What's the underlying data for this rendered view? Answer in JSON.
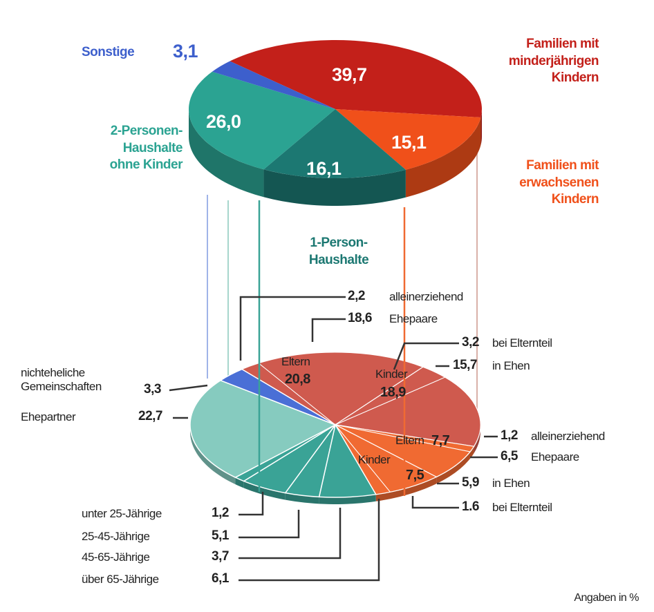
{
  "footnote": "Angaben in %",
  "chart_data": [
    {
      "type": "pie",
      "categories": [
        "Familien mit\nminderjährigen\nKindern",
        "Familien mit\nerwachsenen\nKindern",
        "1-Person-\nHaushalte",
        "2-Personen-\nHaushalte\nohne Kinder",
        "Sonstige"
      ],
      "values": [
        39.7,
        15.1,
        16.1,
        26.0,
        3.1
      ],
      "value_labels": [
        "39,7",
        "15,1",
        "16,1",
        "26,0",
        "3,1"
      ],
      "colors": [
        "#c3201a",
        "#f0501a",
        "#1c7872",
        "#2ba392",
        "#3d5fcc"
      ]
    },
    {
      "type": "pie",
      "categories": [
        "Eltern",
        "Kinder",
        "Eltern",
        "Kinder",
        "über 65-Jährige",
        "45-65-Jährige",
        "25-45-Jährige",
        "unter 25-Jährige",
        "Ehepartner",
        "nichteheliche\nGemeinschaften"
      ],
      "values": [
        20.8,
        18.9,
        7.7,
        7.5,
        6.1,
        3.7,
        5.1,
        1.2,
        22.7,
        3.3
      ],
      "value_labels": [
        "20,8",
        "18,9",
        "7,7",
        "7,5",
        "6,1",
        "3,7",
        "5,1",
        "1,2",
        "22,7",
        "3,3"
      ],
      "colors": [
        "#cf5a4e",
        "#cf5a4e",
        "#f06a32",
        "#f06a32",
        "#3aa396",
        "#3aa396",
        "#3aa396",
        "#3aa396",
        "#86cbbf",
        "#4a6fd6"
      ],
      "breakdown": [
        [
          {
            "name": "alleinerziehend",
            "value": 2.2,
            "value_label": "2,2"
          },
          {
            "name": "Ehepaare",
            "value": 18.6,
            "value_label": "18,6"
          }
        ],
        [
          {
            "name": "bei Elternteil",
            "value": 3.2,
            "value_label": "3,2"
          },
          {
            "name": "in Ehen",
            "value": 15.7,
            "value_label": "15,7"
          }
        ],
        [
          {
            "name": "alleinerziehend",
            "value": 1.2,
            "value_label": "1,2"
          },
          {
            "name": "Ehepaare",
            "value": 6.5,
            "value_label": "6,5"
          }
        ],
        [
          {
            "name": "in Ehen",
            "value": 5.9,
            "value_label": "5,9"
          },
          {
            "name": "bei Elternteil",
            "value": 1.6,
            "value_label": "1.6"
          }
        ],
        null,
        null,
        null,
        null,
        null,
        null
      ]
    }
  ]
}
